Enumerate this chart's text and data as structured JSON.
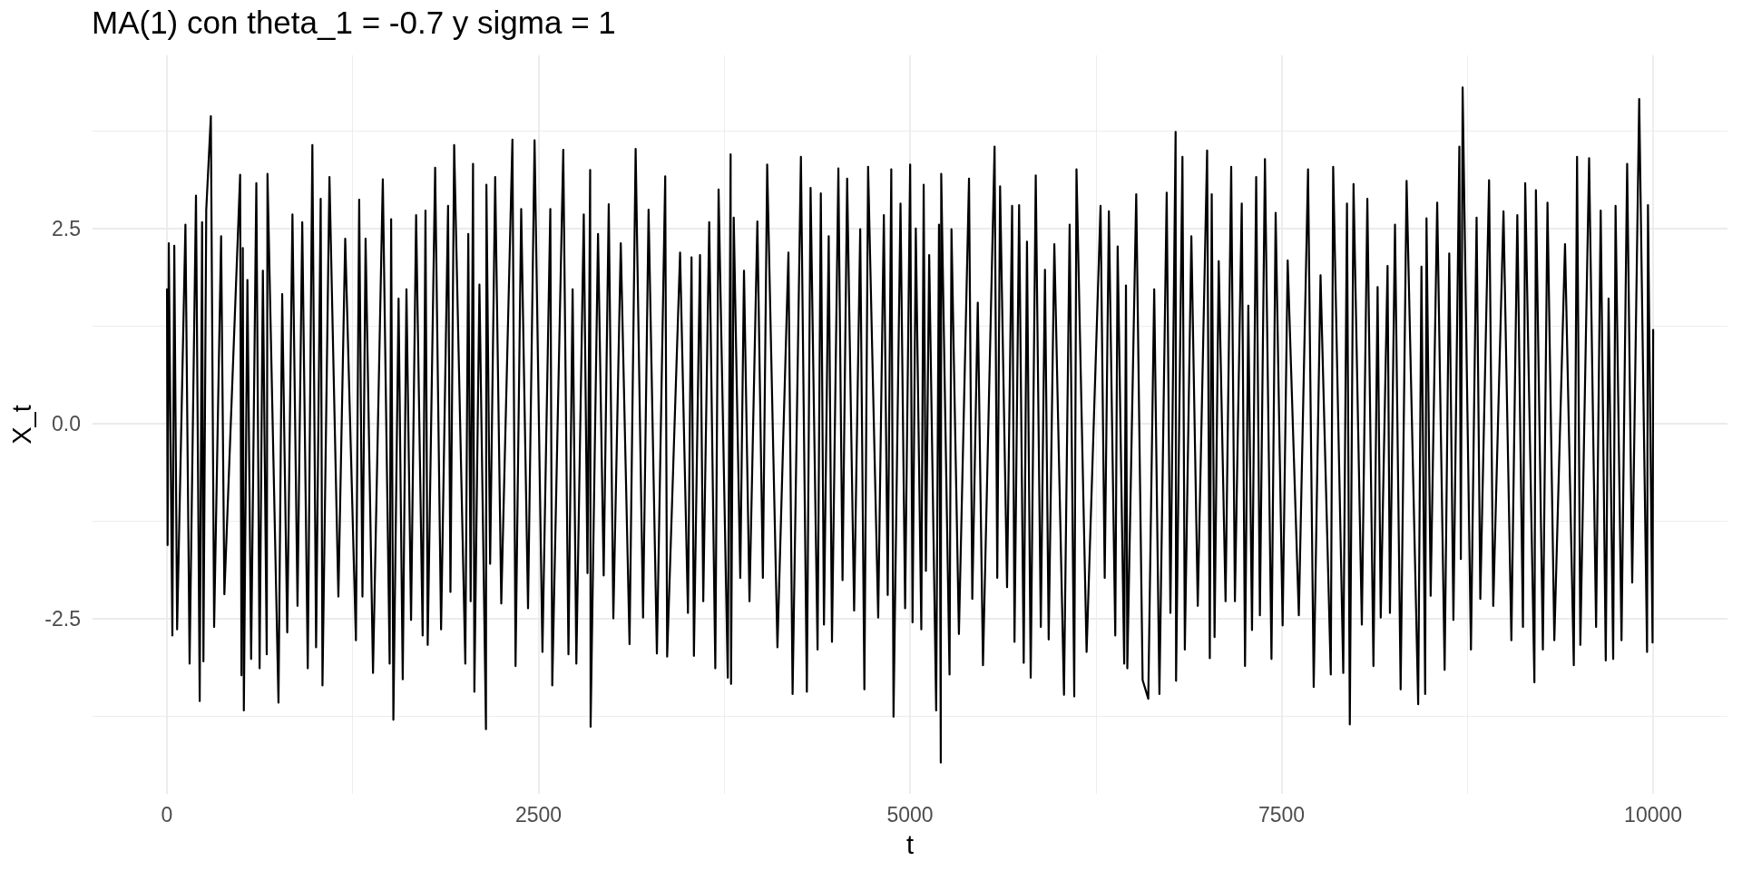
{
  "chart_data": {
    "type": "line",
    "title": "MA(1) con theta_1 = -0.7 y sigma = 1",
    "xlabel": "t",
    "ylabel": "X_t",
    "color": "#000000",
    "x": [
      1,
      5,
      13,
      37,
      50,
      69,
      125,
      153,
      196,
      221,
      237,
      246,
      265,
      296,
      318,
      365,
      387,
      493,
      502,
      511,
      518,
      542,
      567,
      602,
      624,
      646,
      672,
      677,
      751,
      776,
      810,
      845,
      879,
      911,
      948,
      979,
      1004,
      1035,
      1047,
      1094,
      1154,
      1200,
      1272,
      1294,
      1316,
      1337,
      1387,
      1453,
      1499,
      1509,
      1524,
      1559,
      1587,
      1612,
      1643,
      1677,
      1721,
      1740,
      1755,
      1805,
      1845,
      1892,
      1908,
      1933,
      2008,
      2028,
      2044,
      2060,
      2069,
      2103,
      2147,
      2150,
      2175,
      2209,
      2250,
      2325,
      2346,
      2384,
      2430,
      2474,
      2527,
      2580,
      2593,
      2667,
      2702,
      2730,
      2755,
      2805,
      2830,
      2848,
      2851,
      2901,
      2939,
      2973,
      3004,
      3054,
      3113,
      3154,
      3204,
      3241,
      3297,
      3353,
      3366,
      3453,
      3506,
      3530,
      3546,
      3587,
      3609,
      3649,
      3690,
      3712,
      3774,
      3793,
      3796,
      3814,
      3858,
      3883,
      3920,
      3973,
      4010,
      4039,
      4108,
      4182,
      4210,
      4266,
      4306,
      4331,
      4378,
      4400,
      4421,
      4453,
      4475,
      4518,
      4546,
      4577,
      4624,
      4665,
      4693,
      4718,
      4786,
      4824,
      4850,
      4874,
      4889,
      4936,
      4967,
      5001,
      5017,
      5039,
      5076,
      5092,
      5107,
      5129,
      5176,
      5195,
      5207,
      5210,
      5266,
      5279,
      5329,
      5397,
      5419,
      5456,
      5491,
      5569,
      5587,
      5606,
      5653,
      5687,
      5703,
      5734,
      5765,
      5787,
      5812,
      5846,
      5880,
      5908,
      5933,
      5971,
      6036,
      6074,
      6105,
      6120,
      6188,
      6282,
      6310,
      6338,
      6381,
      6397,
      6441,
      6453,
      6462,
      6522,
      6565,
      6603,
      6643,
      6678,
      6727,
      6752,
      6787,
      6790,
      6833,
      6849,
      6893,
      6936,
      6999,
      7017,
      7030,
      7049,
      7077,
      7123,
      7161,
      7186,
      7232,
      7254,
      7276,
      7301,
      7329,
      7354,
      7388,
      7432,
      7460,
      7507,
      7541,
      7616,
      7678,
      7716,
      7762,
      7831,
      7847,
      7915,
      7940,
      7959,
      7984,
      8040,
      8077,
      8118,
      8146,
      8167,
      8213,
      8229,
      8263,
      8301,
      8341,
      8419,
      8441,
      8466,
      8475,
      8503,
      8547,
      8597,
      8628,
      8656,
      8696,
      8706,
      8718,
      8774,
      8812,
      8837,
      8896,
      8924,
      8993,
      9046,
      9086,
      9124,
      9139,
      9201,
      9211,
      9258,
      9289,
      9335,
      9407,
      9466,
      9488,
      9510,
      9569,
      9616,
      9647,
      9681,
      9700,
      9731,
      9747,
      9787,
      9825,
      9859,
      9906,
      9959,
      9965,
      9996,
      10000
    ],
    "values": [
      1.72,
      -1.56,
      2.31,
      -2.72,
      2.28,
      -2.64,
      2.55,
      -3.08,
      2.92,
      -3.56,
      2.58,
      -3.05,
      2.74,
      3.94,
      -2.61,
      2.4,
      -2.19,
      3.19,
      -3.23,
      2.25,
      -3.68,
      1.84,
      -3.02,
      3.08,
      -3.14,
      1.96,
      -2.96,
      3.2,
      -3.58,
      1.66,
      -2.68,
      2.68,
      -2.34,
      2.58,
      -3.14,
      3.57,
      -2.87,
      2.88,
      -3.36,
      3.16,
      -2.22,
      2.37,
      -2.78,
      2.87,
      -2.22,
      2.37,
      -3.2,
      3.13,
      -3.08,
      2.62,
      -3.8,
      1.6,
      -3.28,
      1.72,
      -2.52,
      2.67,
      -2.72,
      2.73,
      -2.84,
      3.28,
      -2.64,
      2.79,
      -2.16,
      3.57,
      -3.08,
      2.43,
      -2.28,
      3.33,
      -3.44,
      1.78,
      -3.92,
      3.06,
      -1.8,
      3.16,
      -2.31,
      3.64,
      -3.11,
      2.75,
      -2.37,
      3.63,
      -2.93,
      2.75,
      -3.36,
      3.51,
      -2.96,
      1.72,
      -3.08,
      2.68,
      -1.92,
      3.25,
      -3.89,
      2.43,
      -1.95,
      2.81,
      -2.5,
      2.31,
      -2.83,
      3.52,
      -2.49,
      2.74,
      -2.95,
      3.17,
      -2.99,
      2.19,
      -2.43,
      2.13,
      -2.98,
      2.16,
      -2.28,
      2.58,
      -3.14,
      3.0,
      -3.26,
      3.45,
      -3.34,
      2.64,
      -1.98,
      1.96,
      -2.28,
      2.59,
      -1.98,
      3.32,
      -2.87,
      2.19,
      -3.47,
      3.42,
      -3.44,
      3.02,
      -2.9,
      2.95,
      -2.58,
      2.4,
      -2.8,
      3.27,
      -2.01,
      3.14,
      -2.4,
      2.49,
      -3.41,
      3.29,
      -2.49,
      2.67,
      -2.2,
      3.26,
      -3.76,
      2.82,
      -2.37,
      3.32,
      -2.55,
      2.5,
      -2.64,
      3.06,
      -1.89,
      2.16,
      -3.68,
      2.55,
      -4.35,
      3.2,
      -3.22,
      2.49,
      -2.7,
      3.14,
      -2.25,
      1.55,
      -3.1,
      3.55,
      -1.98,
      3.04,
      -2.1,
      2.79,
      -2.8,
      2.8,
      -3.07,
      2.33,
      -3.26,
      3.18,
      -2.61,
      1.97,
      -2.77,
      2.3,
      -3.48,
      2.55,
      -3.5,
      3.26,
      -2.93,
      2.79,
      -1.98,
      2.72,
      -2.72,
      2.27,
      -3.08,
      1.77,
      -3.14,
      2.94,
      -3.29,
      -3.53,
      1.72,
      -3.47,
      2.96,
      -2.43,
      3.74,
      -3.3,
      3.42,
      -2.9,
      2.4,
      -2.34,
      3.5,
      -3.01,
      2.94,
      -2.74,
      2.08,
      -2.28,
      3.29,
      -2.28,
      2.82,
      -3.11,
      1.51,
      -2.65,
      3.16,
      -2.46,
      3.39,
      -3.02,
      2.7,
      -2.59,
      2.09,
      -2.46,
      3.26,
      -3.38,
      1.9,
      -3.22,
      3.29,
      -3.2,
      2.82,
      -3.86,
      3.07,
      -2.58,
      2.88,
      -3.11,
      1.75,
      -2.49,
      2.02,
      -2.43,
      2.55,
      -3.41,
      3.11,
      -3.6,
      2.01,
      -3.47,
      2.63,
      -2.21,
      2.83,
      -3.16,
      2.18,
      -2.52,
      3.55,
      -1.74,
      4.31,
      -2.9,
      2.64,
      -2.25,
      3.12,
      -2.34,
      2.72,
      -2.78,
      2.67,
      -2.61,
      3.08,
      -3.32,
      2.99,
      -2.9,
      2.83,
      -2.78,
      2.3,
      -3.1,
      3.42,
      -2.84,
      3.4,
      -2.61,
      2.73,
      -3.04,
      1.6,
      -3.02,
      2.79,
      -2.78,
      3.33,
      -2.04,
      4.16,
      -2.93,
      2.8,
      -2.81,
      1.2
    ],
    "xlim": [
      -500,
      10500
    ],
    "ylim": [
      -4.75,
      4.72
    ],
    "xticks": [
      0,
      {
        "value": 1250,
        "label": null
      },
      2500,
      {
        "value": 3750,
        "label": null
      },
      5000,
      {
        "value": 6250,
        "label": null
      },
      7500,
      {
        "value": 8750,
        "label": null
      },
      10000
    ],
    "yticks": [
      {
        "value": -3.75,
        "label": null
      },
      -2.5,
      {
        "value": -1.25,
        "label": null
      },
      {
        "value": 0,
        "label": "0.0"
      },
      {
        "value": 1.25,
        "label": null
      },
      2.5,
      {
        "value": 3.75,
        "label": null
      }
    ],
    "grid": true
  }
}
